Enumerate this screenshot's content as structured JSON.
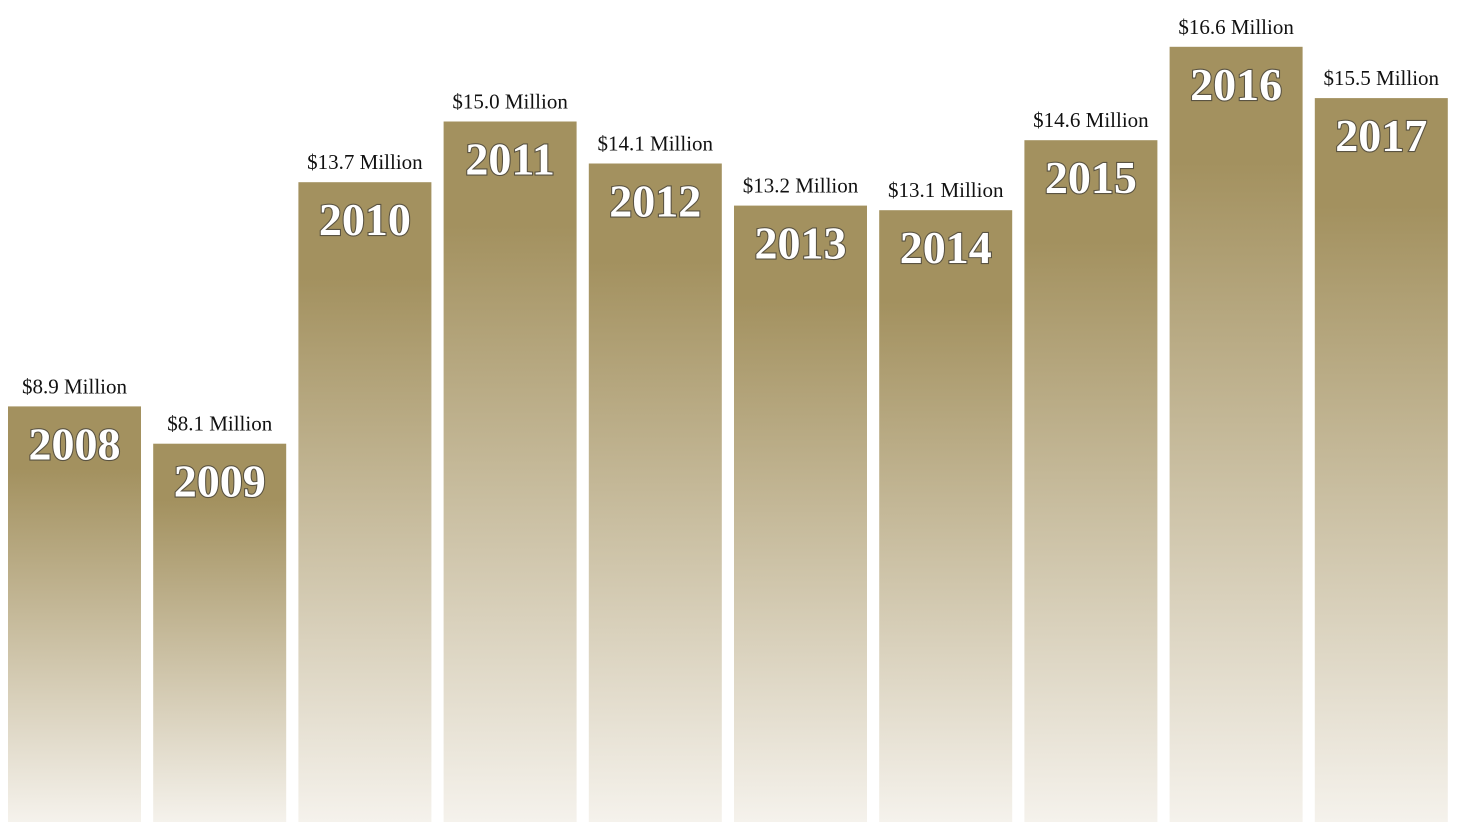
{
  "chart_data": {
    "type": "bar",
    "categories": [
      "2008",
      "2009",
      "2010",
      "2011",
      "2012",
      "2013",
      "2014",
      "2015",
      "2016",
      "2017"
    ],
    "values": [
      8.9,
      8.1,
      13.7,
      15.0,
      14.1,
      13.2,
      13.1,
      14.6,
      16.6,
      15.5
    ],
    "value_labels": [
      "$8.9 Million",
      "$8.1 Million",
      "$13.7 Million",
      "$15.0 Million",
      "$14.1 Million",
      "$13.2 Million",
      "$13.1 Million",
      "$14.6 Million",
      "$16.6 Million",
      "$15.5 Million"
    ],
    "unit": "Million",
    "title": "",
    "xlabel": "",
    "ylabel": "",
    "grid": false,
    "legend": "none",
    "colors": {
      "bar_top": "#a3915f",
      "bar_bottom": "#f5f2ec",
      "year_label_fill": "#ffffff",
      "year_label_outline": "#5a5342",
      "value_label": "#111111"
    }
  }
}
